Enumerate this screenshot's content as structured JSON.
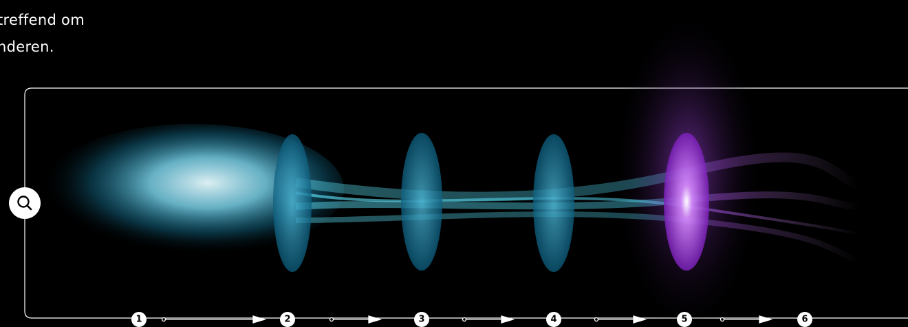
{
  "intro": {
    "lines": [
      "treffend om",
      "nderen."
    ]
  },
  "steps": [
    "1",
    "2",
    "3",
    "4",
    "5",
    "6"
  ]
}
